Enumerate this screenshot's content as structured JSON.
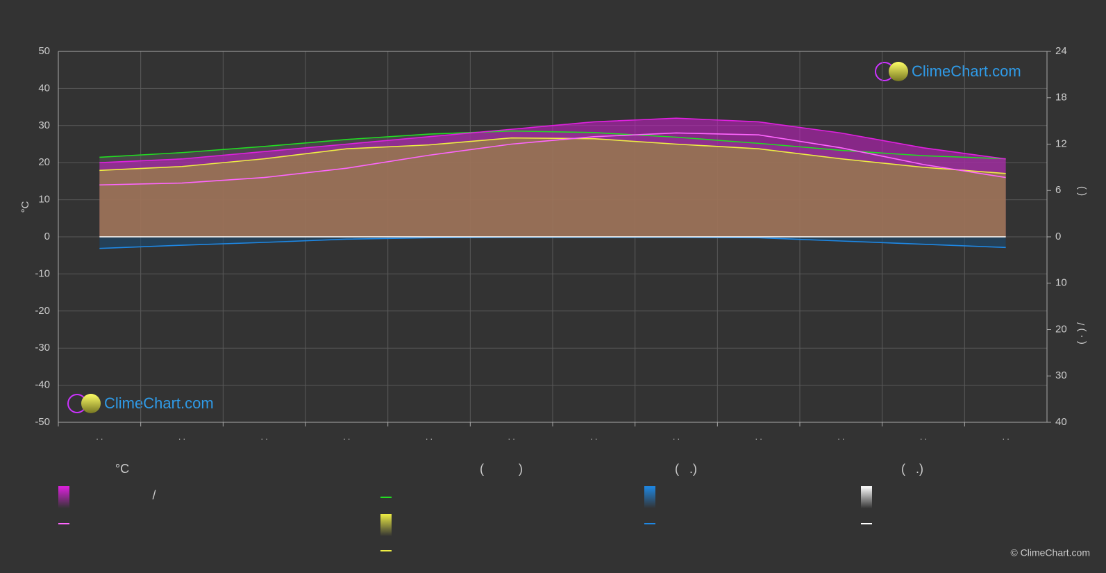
{
  "chart_data": {
    "type": "line",
    "categories": [
      ". .",
      ". .",
      ". .",
      ". .",
      ". .",
      ". .",
      ". .",
      ". .",
      ". .",
      ". .",
      ". .",
      ". ."
    ],
    "ylabel": "°C",
    "ylim": [
      -50,
      50
    ],
    "yticks": [
      -50,
      -40,
      -30,
      -20,
      -10,
      0,
      10,
      20,
      30,
      40,
      50
    ],
    "y2lim": [
      0,
      24
    ],
    "y2ticks": [
      0,
      6,
      12,
      18,
      24
    ],
    "y3lim": [
      0,
      40
    ],
    "y3ticks": [
      10,
      20,
      30,
      40
    ],
    "y2label_top": "(      )",
    "y2label_bottom": "( · )      /",
    "grid": true,
    "series": [
      {
        "color": "#e020e0",
        "fill": "#c020c0",
        "style": "area",
        "axis": "y",
        "values": [
          20,
          21,
          23,
          25,
          27,
          29,
          31,
          32,
          31,
          28,
          24,
          21
        ]
      },
      {
        "color": "#ff66ff",
        "style": "line",
        "axis": "y",
        "values": [
          14,
          14.5,
          16,
          18.5,
          22,
          25,
          27,
          28,
          27.5,
          24,
          19.5,
          16
        ]
      },
      {
        "color": "#22dd22",
        "fill": "#555555",
        "style": "area",
        "axis": "y2",
        "values": [
          10.3,
          10.9,
          11.7,
          12.6,
          13.3,
          13.7,
          13.5,
          12.9,
          12.1,
          11.2,
          10.5,
          10.1
        ]
      },
      {
        "color": "#eeee44",
        "fill": "#9a9a30",
        "style": "area",
        "axis": "y2",
        "values": [
          8.6,
          9.1,
          10.1,
          11.4,
          11.9,
          12.8,
          12.7,
          12.0,
          11.4,
          10.1,
          9.0,
          8.2
        ]
      },
      {
        "color": "#1e88e5",
        "fill": "#1a4a70",
        "style": "area",
        "axis": "y3",
        "values": [
          2.5,
          1.8,
          1.2,
          0.5,
          0.2,
          0.1,
          0.1,
          0.1,
          0.2,
          0.9,
          1.6,
          2.3
        ]
      },
      {
        "color": "#ffffff",
        "fill": "#cccccc",
        "style": "area",
        "axis": "y3",
        "values": [
          0,
          0,
          0,
          0,
          0,
          0,
          0,
          0,
          0,
          0,
          0,
          0
        ]
      }
    ],
    "legend": {
      "headers": [
        "°C",
        "(          )",
        "(   .)",
        "(   .)"
      ],
      "separator": "/"
    },
    "watermark": "ClimeChart.com",
    "copyright": "© ClimeChart.com"
  }
}
